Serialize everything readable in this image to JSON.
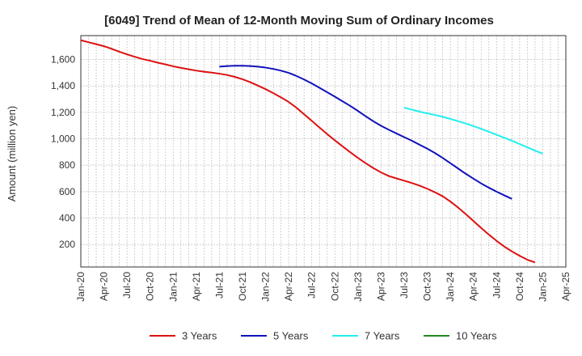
{
  "chart_data": {
    "type": "line",
    "title": "[6049]  Trend of Mean of 12-Month Moving Sum of Ordinary Incomes",
    "xlabel": "",
    "ylabel": "Amount (million yen)",
    "ylim": [
      30,
      1780
    ],
    "yticks": [
      200,
      400,
      600,
      800,
      1000,
      1200,
      1400,
      1600
    ],
    "ytick_labels": [
      "200",
      "400",
      "600",
      "800",
      "1,000",
      "1,200",
      "1,400",
      "1,600"
    ],
    "x_start": "Jan-20",
    "x_months": 63,
    "xtick_months": [
      0,
      3,
      6,
      9,
      12,
      15,
      18,
      21,
      24,
      27,
      30,
      33,
      36,
      39,
      42,
      45,
      48,
      51,
      54,
      57,
      60,
      63
    ],
    "xtick_labels": [
      "Jan-20",
      "Apr-20",
      "Jul-20",
      "Oct-20",
      "Jan-21",
      "Apr-21",
      "Jul-21",
      "Oct-21",
      "Jan-22",
      "Apr-22",
      "Jul-22",
      "Oct-22",
      "Jan-23",
      "Apr-23",
      "Jul-23",
      "Oct-23",
      "Jan-24",
      "Apr-24",
      "Jul-24",
      "Oct-24",
      "Jan-25",
      "Apr-25"
    ],
    "series": [
      {
        "name": "3 Years",
        "color": "#dd1111",
        "start_month": 0,
        "values": [
          1745,
          1730,
          1715,
          1700,
          1680,
          1658,
          1638,
          1620,
          1603,
          1590,
          1575,
          1562,
          1548,
          1536,
          1525,
          1515,
          1507,
          1500,
          1492,
          1482,
          1468,
          1450,
          1428,
          1402,
          1375,
          1345,
          1313,
          1278,
          1235,
          1185,
          1135,
          1085,
          1035,
          988,
          942,
          898,
          855,
          815,
          778,
          745,
          718,
          700,
          683,
          665,
          645,
          622,
          595,
          565,
          525,
          480,
          430,
          378,
          325,
          275,
          228,
          185,
          148,
          115,
          85,
          65
        ]
      },
      {
        "name": "5 Years",
        "color": "#1111bb",
        "start_month": 18,
        "values": [
          1545,
          1550,
          1552,
          1552,
          1550,
          1545,
          1538,
          1528,
          1515,
          1498,
          1475,
          1448,
          1418,
          1385,
          1352,
          1318,
          1283,
          1248,
          1210,
          1170,
          1132,
          1098,
          1068,
          1040,
          1012,
          985,
          955,
          925,
          892,
          855,
          815,
          775,
          735,
          698,
          662,
          630,
          600,
          572,
          545
        ]
      },
      {
        "name": "7 Years",
        "color": "#22eeee",
        "start_month": 42,
        "values": [
          1235,
          1220,
          1205,
          1192,
          1180,
          1166,
          1150,
          1133,
          1115,
          1096,
          1075,
          1053,
          1030,
          1008,
          985,
          960,
          935,
          910,
          888
        ]
      },
      {
        "name": "10 Years",
        "color": "#228822",
        "start_month": 60,
        "values": []
      }
    ],
    "legend_position": "bottom",
    "grid": true
  }
}
